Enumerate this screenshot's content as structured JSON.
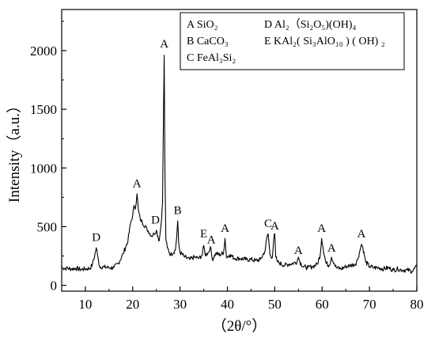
{
  "chart_data": {
    "type": "line",
    "xlabel": "（2θ/°）",
    "ylabel": "Intensity（a.u.）",
    "xlim": [
      5,
      80
    ],
    "ylim": [
      -50,
      2350
    ],
    "x_ticks": [
      10,
      20,
      30,
      40,
      50,
      60,
      70,
      80
    ],
    "y_ticks": [
      0,
      500,
      1000,
      1500,
      2000
    ],
    "grid": false,
    "legend_placement": "top-right",
    "legend": [
      {
        "key": "A",
        "formula": "SiO₂"
      },
      {
        "key": "B",
        "formula": "CaCO₃"
      },
      {
        "key": "C",
        "formula": "FeAl₃Si₂"
      },
      {
        "key": "D",
        "formula": "Al₂（Si₂O₅)(OH)₄"
      },
      {
        "key": "E",
        "formula": "KAl₂( Si₃AlO₁₀ ) ( OH) ₂"
      }
    ],
    "series": [
      {
        "color": "#000000",
        "x": [
          5,
          6,
          7,
          8,
          9,
          10,
          11,
          11.5,
          12,
          12.3,
          12.6,
          13,
          14,
          15,
          16,
          17,
          18,
          19,
          19.5,
          20,
          20.3,
          20.6,
          20.9,
          21.2,
          21.6,
          22,
          23,
          24,
          24.5,
          25,
          25.3,
          25.6,
          26,
          26.3,
          26.5,
          26.65,
          26.8,
          27,
          27.3,
          28,
          29,
          29.3,
          29.5,
          29.7,
          30,
          31,
          32,
          33,
          34,
          34.7,
          35,
          35.3,
          36,
          36.4,
          36.8,
          37.5,
          38.5,
          39.2,
          39.5,
          39.8,
          40.5,
          41.5,
          42.5,
          44,
          45,
          46,
          47,
          48,
          48.3,
          48.6,
          49,
          49.5,
          49.8,
          50,
          50.2,
          50.6,
          51,
          52,
          53,
          54,
          54.7,
          55,
          55.3,
          56,
          57,
          58,
          59,
          59.6,
          59.9,
          60.2,
          60.8,
          61.5,
          62,
          62.5,
          63,
          64,
          65,
          66,
          67,
          67.5,
          68,
          68.3,
          68.6,
          69.2,
          70,
          71,
          72,
          73,
          74,
          75,
          76,
          77,
          78,
          79,
          80
        ],
        "y": [
          150,
          145,
          140,
          145,
          135,
          140,
          145,
          180,
          260,
          320,
          250,
          160,
          155,
          150,
          150,
          190,
          270,
          380,
          520,
          600,
          680,
          660,
          780,
          640,
          560,
          540,
          480,
          420,
          440,
          470,
          420,
          380,
          520,
          700,
          1450,
          1960,
          1000,
          400,
          320,
          260,
          300,
          420,
          550,
          360,
          280,
          240,
          220,
          240,
          230,
          260,
          340,
          260,
          280,
          330,
          220,
          270,
          260,
          280,
          400,
          240,
          260,
          230,
          230,
          220,
          220,
          210,
          220,
          300,
          400,
          440,
          260,
          240,
          400,
          440,
          240,
          200,
          190,
          170,
          180,
          190,
          200,
          240,
          200,
          160,
          150,
          160,
          180,
          260,
          400,
          320,
          190,
          170,
          240,
          190,
          150,
          140,
          160,
          170,
          180,
          220,
          300,
          350,
          320,
          200,
          160,
          150,
          150,
          140,
          150,
          130,
          140,
          130,
          130,
          120,
          160
        ]
      }
    ],
    "annotations": [
      {
        "label": "D",
        "x": 12.3,
        "y": 350
      },
      {
        "label": "A",
        "x": 20.9,
        "y": 810
      },
      {
        "label": "D",
        "x": 24.8,
        "y": 500
      },
      {
        "label": "A",
        "x": 26.65,
        "y": 2000
      },
      {
        "label": "B",
        "x": 29.5,
        "y": 580
      },
      {
        "label": "E",
        "x": 35.0,
        "y": 380
      },
      {
        "label": "A",
        "x": 36.6,
        "y": 330
      },
      {
        "label": "A",
        "x": 39.5,
        "y": 430
      },
      {
        "label": "C",
        "x": 48.6,
        "y": 470
      },
      {
        "label": "A",
        "x": 50.0,
        "y": 450
      },
      {
        "label": "A",
        "x": 55.0,
        "y": 240
      },
      {
        "label": "A",
        "x": 59.9,
        "y": 430
      },
      {
        "label": "A",
        "x": 62.0,
        "y": 260
      },
      {
        "label": "A",
        "x": 68.3,
        "y": 380
      }
    ]
  }
}
